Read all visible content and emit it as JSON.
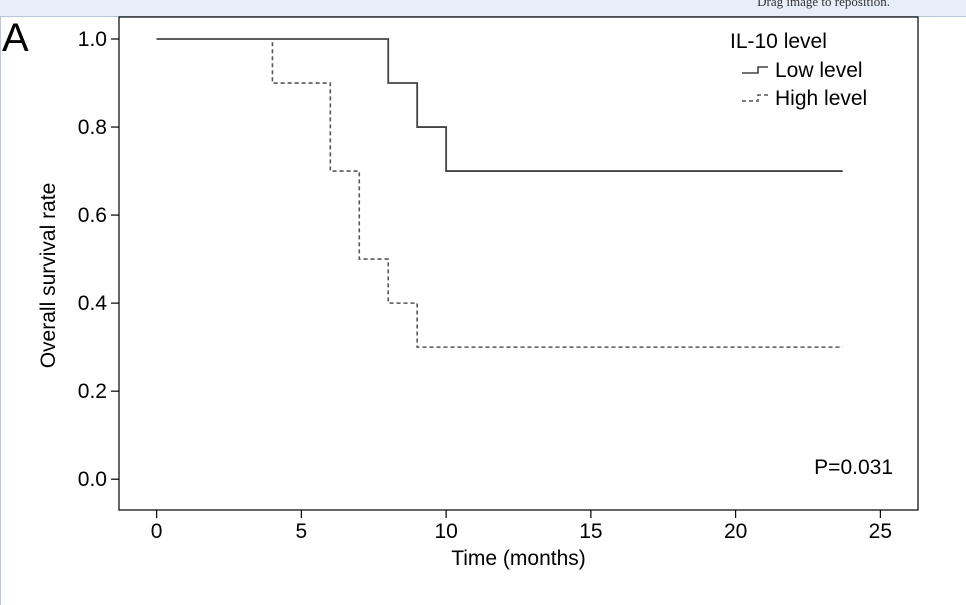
{
  "header": {
    "drag_hint": "Drag image to reposition."
  },
  "panel_label": "A",
  "chart_data": {
    "type": "line",
    "step": true,
    "title": "",
    "xlabel": "Time (months)",
    "ylabel": "Overall survival rate",
    "xlim": [
      -1.3,
      26.3
    ],
    "ylim": [
      -0.07,
      1.05
    ],
    "xticks": [
      0,
      5,
      10,
      15,
      20,
      25
    ],
    "xtick_labels": [
      "0",
      "5",
      "10",
      "15",
      "20",
      "25"
    ],
    "yticks": [
      0.0,
      0.2,
      0.4,
      0.6,
      0.8,
      1.0
    ],
    "ytick_labels": [
      "0.0",
      "0.2",
      "0.4",
      "0.6",
      "0.8",
      "1.0"
    ],
    "grid": false,
    "legend": {
      "title": "IL-10 level",
      "position": "top-right"
    },
    "series": [
      {
        "name": "Low level",
        "style": "solid",
        "color": "#444444",
        "x": [
          0,
          8,
          9,
          10,
          23.7
        ],
        "y": [
          1.0,
          0.9,
          0.8,
          0.7,
          0.7
        ]
      },
      {
        "name": "High level",
        "style": "dashed",
        "color": "#555555",
        "x": [
          0,
          4,
          6,
          7,
          8,
          9,
          23.7
        ],
        "y": [
          1.0,
          0.9,
          0.7,
          0.5,
          0.4,
          0.3,
          0.3
        ]
      }
    ],
    "annotations": [
      {
        "text": "P=0.031",
        "position": "bottom-right"
      }
    ]
  }
}
